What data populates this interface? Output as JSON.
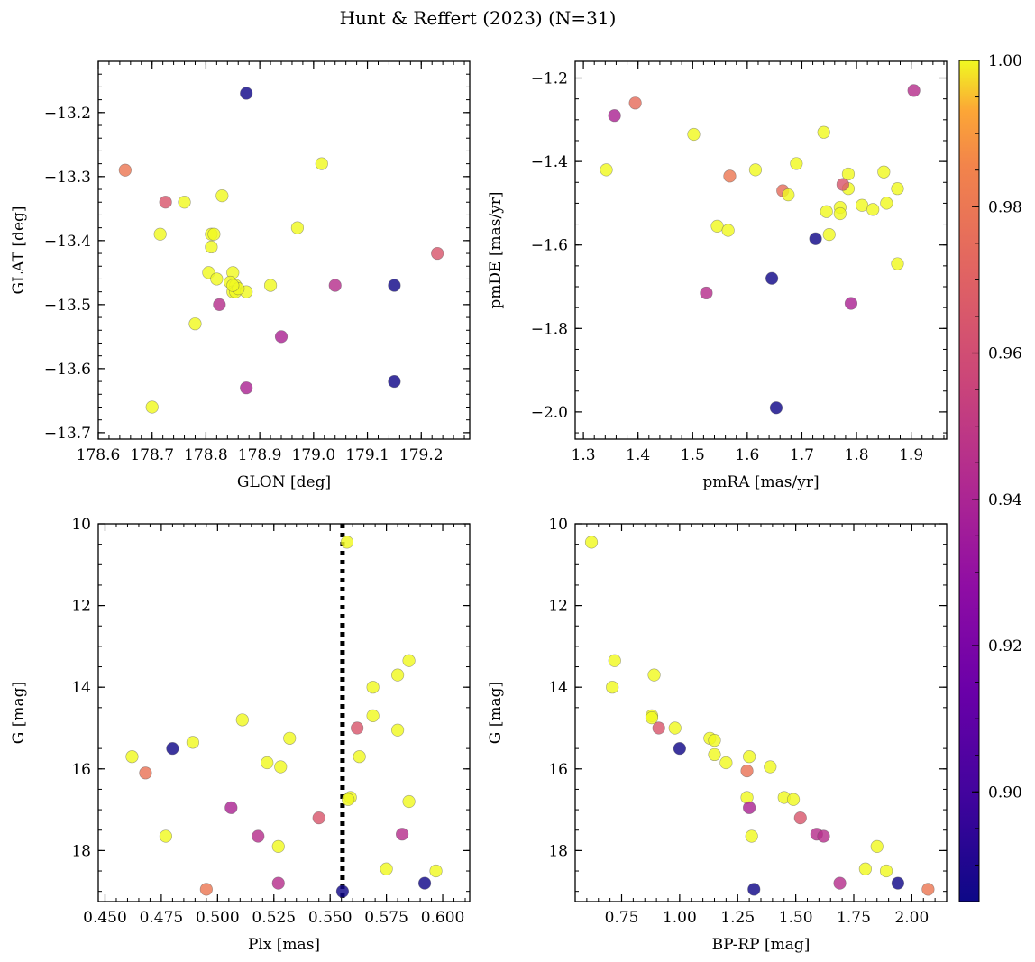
{
  "figure": {
    "title": "Hunt & Reffert (2023) (N=31)"
  },
  "colorbar": {
    "cmap": "plasma",
    "vmin": 0.885,
    "vmax": 1.0,
    "ticks": [
      0.9,
      0.92,
      0.94,
      0.96,
      0.98,
      1.0
    ],
    "tick_labels": [
      "0.90",
      "0.92",
      "0.94",
      "0.96",
      "0.98",
      "1.00"
    ]
  },
  "chart_data": [
    {
      "id": "glon-glat",
      "type": "scatter",
      "xlabel": "GLON [deg]",
      "ylabel": "GLAT [deg]",
      "xlim": [
        178.6,
        179.29
      ],
      "ylim": [
        -13.71,
        -13.12
      ],
      "xticks": [
        178.6,
        178.7,
        178.8,
        178.9,
        179.0,
        179.1,
        179.2
      ],
      "xtick_labels": [
        "178.6",
        "178.7",
        "178.8",
        "178.9",
        "179.0",
        "179.1",
        "179.2"
      ],
      "yticks": [
        -13.2,
        -13.3,
        -13.4,
        -13.5,
        -13.6,
        -13.7
      ],
      "ytick_labels": [
        "−13.2",
        "−13.3",
        "−13.4",
        "−13.5",
        "−13.6",
        "−13.7"
      ],
      "x": [
        178.875,
        178.65,
        178.725,
        178.76,
        178.83,
        178.715,
        178.81,
        178.81,
        178.805,
        178.82,
        178.85,
        178.845,
        178.855,
        178.85,
        178.855,
        178.875,
        178.78,
        178.825,
        178.92,
        178.97,
        179.015,
        178.94,
        178.875,
        178.7,
        179.04,
        179.15,
        179.15,
        179.23,
        178.815,
        178.86,
        178.85
      ],
      "y": [
        -13.17,
        -13.29,
        -13.34,
        -13.34,
        -13.33,
        -13.39,
        -13.39,
        -13.41,
        -13.45,
        -13.46,
        -13.45,
        -13.465,
        -13.47,
        -13.48,
        -13.48,
        -13.48,
        -13.53,
        -13.5,
        -13.47,
        -13.38,
        -13.28,
        -13.55,
        -13.63,
        -13.66,
        -13.47,
        -13.47,
        -13.62,
        -13.42,
        -13.39,
        -13.475,
        -13.47
      ],
      "color_values": [
        0.886,
        0.98,
        0.965,
        1.0,
        1.0,
        1.0,
        1.0,
        1.0,
        1.0,
        1.0,
        1.0,
        1.0,
        1.0,
        1.0,
        1.0,
        1.0,
        1.0,
        0.945,
        1.0,
        1.0,
        1.0,
        0.94,
        0.94,
        1.0,
        0.945,
        0.886,
        0.886,
        0.965,
        1.0,
        1.0,
        1.0
      ]
    },
    {
      "id": "pmra-pmde",
      "type": "scatter",
      "xlabel": "pmRA [mas/yr]",
      "ylabel": "pmDE [mas/yr]",
      "xlim": [
        1.285,
        1.965
      ],
      "ylim": [
        -2.065,
        -1.16
      ],
      "xticks": [
        1.3,
        1.4,
        1.5,
        1.6,
        1.7,
        1.8,
        1.9
      ],
      "xtick_labels": [
        "1.3",
        "1.4",
        "1.5",
        "1.6",
        "1.7",
        "1.8",
        "1.9"
      ],
      "yticks": [
        -1.2,
        -1.4,
        -1.6,
        -1.8,
        -2.0
      ],
      "ytick_labels": [
        "−1.2",
        "−1.4",
        "−1.6",
        "−1.8",
        "−2.0"
      ],
      "x": [
        1.395,
        1.905,
        1.357,
        1.502,
        1.342,
        1.74,
        1.568,
        1.615,
        1.69,
        1.785,
        1.85,
        1.875,
        1.785,
        1.665,
        1.675,
        1.775,
        1.81,
        1.745,
        1.77,
        1.83,
        1.855,
        1.77,
        1.545,
        1.565,
        1.75,
        1.725,
        1.875,
        1.645,
        1.525,
        1.79,
        1.653
      ],
      "y": [
        -1.26,
        -1.23,
        -1.29,
        -1.335,
        -1.42,
        -1.33,
        -1.435,
        -1.42,
        -1.405,
        -1.43,
        -1.425,
        -1.465,
        -1.465,
        -1.47,
        -1.48,
        -1.455,
        -1.505,
        -1.52,
        -1.51,
        -1.515,
        -1.5,
        -1.525,
        -1.555,
        -1.565,
        -1.575,
        -1.585,
        -1.645,
        -1.68,
        -1.715,
        -1.74,
        -1.99
      ],
      "color_values": [
        0.975,
        0.945,
        0.94,
        1.0,
        1.0,
        1.0,
        0.98,
        1.0,
        1.0,
        1.0,
        1.0,
        1.0,
        1.0,
        0.975,
        1.0,
        0.965,
        1.0,
        1.0,
        1.0,
        1.0,
        1.0,
        1.0,
        1.0,
        1.0,
        1.0,
        0.886,
        1.0,
        0.886,
        0.945,
        0.94,
        0.886
      ]
    },
    {
      "id": "plx-g",
      "type": "scatter",
      "xlabel": "Plx [mas]",
      "ylabel": "G [mag]",
      "xlim": [
        0.447,
        0.612
      ],
      "ylim": [
        19.25,
        10.0
      ],
      "y_inverted": true,
      "xticks": [
        0.45,
        0.475,
        0.5,
        0.525,
        0.55,
        0.575,
        0.6
      ],
      "xtick_labels": [
        "0.450",
        "0.475",
        "0.500",
        "0.525",
        "0.550",
        "0.575",
        "0.600"
      ],
      "yticks": [
        10,
        12,
        14,
        16,
        18
      ],
      "ytick_labels": [
        "10",
        "12",
        "14",
        "16",
        "18"
      ],
      "vline": {
        "x": 0.5555,
        "style": "dotted"
      },
      "x": [
        0.5575,
        0.585,
        0.58,
        0.569,
        0.569,
        0.562,
        0.58,
        0.511,
        0.489,
        0.532,
        0.462,
        0.48,
        0.468,
        0.563,
        0.522,
        0.528,
        0.506,
        0.559,
        0.558,
        0.585,
        0.545,
        0.477,
        0.518,
        0.527,
        0.582,
        0.575,
        0.597,
        0.527,
        0.592,
        0.495,
        0.5555
      ],
      "y": [
        10.45,
        13.35,
        13.7,
        14.0,
        14.7,
        15.0,
        15.05,
        14.8,
        15.35,
        15.25,
        15.7,
        15.5,
        16.1,
        15.7,
        15.85,
        15.95,
        16.95,
        16.7,
        16.75,
        16.8,
        17.2,
        17.65,
        17.65,
        17.9,
        17.6,
        18.45,
        18.5,
        18.8,
        18.8,
        18.95,
        19.0
      ],
      "color_values": [
        1.0,
        1.0,
        1.0,
        1.0,
        1.0,
        0.965,
        1.0,
        1.0,
        1.0,
        1.0,
        1.0,
        0.886,
        0.978,
        1.0,
        1.0,
        1.0,
        0.94,
        1.0,
        1.0,
        1.0,
        0.965,
        1.0,
        0.945,
        1.0,
        0.945,
        1.0,
        1.0,
        0.945,
        0.886,
        0.98,
        0.886
      ]
    },
    {
      "id": "bprp-g",
      "type": "scatter",
      "xlabel": "BP-RP [mag]",
      "ylabel": "G [mag]",
      "xlim": [
        0.55,
        2.15
      ],
      "ylim": [
        19.25,
        10.0
      ],
      "y_inverted": true,
      "xticks": [
        0.75,
        1.0,
        1.25,
        1.5,
        1.75,
        2.0
      ],
      "xtick_labels": [
        "0.75",
        "1.00",
        "1.25",
        "1.50",
        "1.75",
        "2.00"
      ],
      "yticks": [
        10,
        12,
        14,
        16,
        18
      ],
      "ytick_labels": [
        "10",
        "12",
        "14",
        "16",
        "18"
      ],
      "x": [
        0.62,
        0.72,
        0.71,
        0.89,
        0.88,
        0.88,
        0.91,
        0.98,
        1.0,
        1.13,
        1.15,
        1.15,
        1.2,
        1.3,
        1.29,
        1.39,
        1.29,
        1.45,
        1.3,
        1.49,
        1.52,
        1.31,
        1.59,
        1.62,
        1.8,
        1.89,
        1.85,
        1.69,
        1.94,
        2.07,
        1.32
      ],
      "y": [
        10.45,
        13.35,
        14.0,
        13.7,
        14.7,
        14.75,
        15.0,
        15.0,
        15.5,
        15.25,
        15.3,
        15.65,
        15.85,
        15.7,
        16.05,
        15.95,
        16.7,
        16.7,
        16.95,
        16.75,
        17.2,
        17.65,
        17.6,
        17.65,
        18.45,
        18.5,
        17.9,
        18.8,
        18.8,
        18.95,
        18.95
      ],
      "color_values": [
        1.0,
        1.0,
        1.0,
        1.0,
        1.0,
        1.0,
        0.965,
        1.0,
        0.886,
        1.0,
        1.0,
        1.0,
        1.0,
        1.0,
        0.978,
        1.0,
        1.0,
        1.0,
        0.94,
        1.0,
        0.965,
        1.0,
        0.945,
        0.945,
        1.0,
        1.0,
        1.0,
        0.945,
        0.886,
        0.98,
        0.886
      ]
    }
  ]
}
